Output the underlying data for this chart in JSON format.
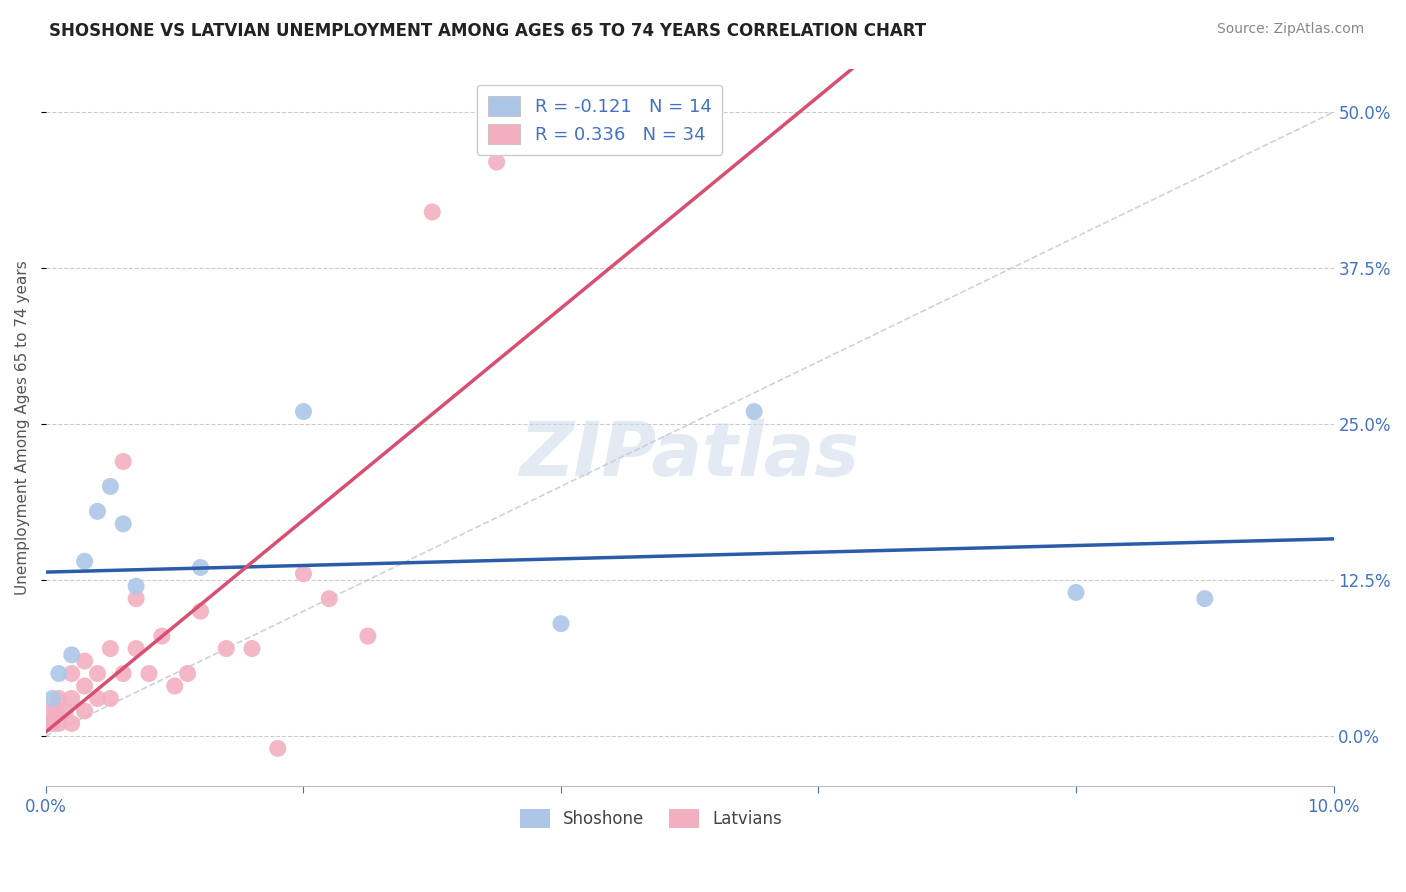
{
  "title": "SHOSHONE VS LATVIAN UNEMPLOYMENT AMONG AGES 65 TO 74 YEARS CORRELATION CHART",
  "source": "Source: ZipAtlas.com",
  "ylabel": "Unemployment Among Ages 65 to 74 years",
  "xlim": [
    0.0,
    0.1
  ],
  "ylim": [
    -0.04,
    0.535
  ],
  "yticks": [
    0.0,
    0.125,
    0.25,
    0.375,
    0.5
  ],
  "ytick_labels": [
    "0.0%",
    "12.5%",
    "25.0%",
    "37.5%",
    "50.0%"
  ],
  "xtick_labels": [
    "0.0%",
    "",
    "",
    "",
    "",
    "10.0%"
  ],
  "shoshone_color": "#adc6e8",
  "latvian_color": "#f2afc0",
  "shoshone_line_color": "#2a5caa",
  "latvian_line_color": "#d94f72",
  "diagonal_color": "#c0c8d4",
  "legend_shoshone_label": "R = -0.121   N = 14",
  "legend_latvian_label": "R = 0.336   N = 34",
  "watermark": "ZIPatlas",
  "shoshone_x": [
    0.0005,
    0.001,
    0.002,
    0.003,
    0.004,
    0.005,
    0.006,
    0.007,
    0.012,
    0.02,
    0.04,
    0.055,
    0.08,
    0.09
  ],
  "shoshone_y": [
    0.03,
    0.05,
    0.065,
    0.14,
    0.18,
    0.2,
    0.17,
    0.12,
    0.135,
    0.26,
    0.09,
    0.26,
    0.115,
    0.11
  ],
  "latvian_x": [
    0.0002,
    0.0003,
    0.0005,
    0.0008,
    0.001,
    0.001,
    0.0015,
    0.002,
    0.002,
    0.002,
    0.003,
    0.003,
    0.003,
    0.004,
    0.004,
    0.005,
    0.005,
    0.006,
    0.006,
    0.007,
    0.007,
    0.008,
    0.009,
    0.01,
    0.011,
    0.012,
    0.014,
    0.016,
    0.018,
    0.02,
    0.022,
    0.025,
    0.03,
    0.035
  ],
  "latvian_y": [
    0.01,
    0.02,
    0.01,
    0.02,
    0.01,
    0.03,
    0.02,
    0.01,
    0.03,
    0.05,
    0.02,
    0.04,
    0.06,
    0.03,
    0.05,
    0.03,
    0.07,
    0.05,
    0.22,
    0.07,
    0.11,
    0.05,
    0.08,
    0.04,
    0.05,
    0.1,
    0.07,
    0.07,
    -0.01,
    0.13,
    0.11,
    0.08,
    0.42,
    0.46
  ]
}
